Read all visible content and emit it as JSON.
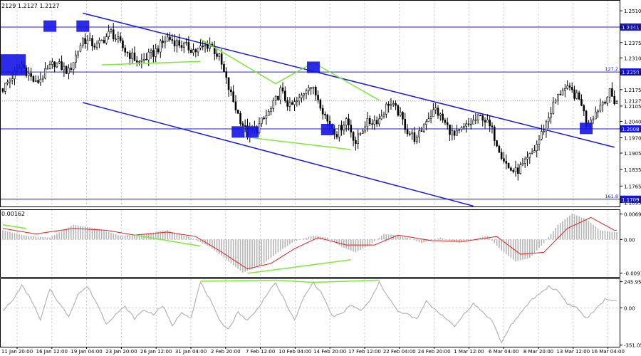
{
  "header": {
    "ohlc_text": "2129 1.2127 1.2127"
  },
  "colors": {
    "background": "#ffffff",
    "grid": "#c8c8c8",
    "price": "#000000",
    "trend": "#1a1adc",
    "level": "#1a1adc",
    "marker": "#1414e6",
    "green": "#7ce83a",
    "macd_hist": "#b4b4b4",
    "macd_signal": "#e02020",
    "cci": "#b4b4b4",
    "price_box": "#1414e6",
    "price_box_text": "#ffffff"
  },
  "chart_data": [
    {
      "type": "candlestick",
      "name": "price",
      "x_ticks": [
        "11 Jan 20:00",
        "16 Jan 12:00",
        "19 Jan 04:00",
        "23 Jan 20:00",
        "26 Jan 12:00",
        "31 Jan 04:00",
        "2 Feb 20:00",
        "7 Feb 12:00",
        "10 Feb 04:00",
        "14 Feb 20:00",
        "17 Feb 12:00",
        "22 Feb 04:00",
        "24 Feb 20:00",
        "1 Mar 12:00",
        "6 Mar 04:00",
        "8 Mar 20:00",
        "13 Mar 12:00",
        "16 Mar 04:00"
      ],
      "y_ticks": [
        1.251,
        1.2441,
        1.2375,
        1.231,
        1.2245,
        1.2175,
        1.2105,
        1.204,
        1.197,
        1.1905,
        1.1835,
        1.1765,
        1.1695
      ],
      "y_axis_labels": [
        "1.2510",
        "1.2441",
        "1.2375",
        "1.2310",
        "1.2245",
        "1.2175",
        "1.2105",
        "1.2040",
        "1.1970",
        "1.1905",
        "1.1835",
        "1.1765",
        "1.1695"
      ],
      "ylim": [
        1.1678,
        1.2556
      ],
      "last_price": 1.2127,
      "last_price_label": "1.2127",
      "levels": [
        {
          "value": 1.2441,
          "label": "1.2441",
          "tag": ""
        },
        {
          "value": 1.225,
          "label": "1.2250",
          "tag": "127.2"
        },
        {
          "value": 1.2008,
          "label": "1.2008",
          "tag": ""
        },
        {
          "value": 1.1709,
          "label": "1.1709",
          "tag": "161.8"
        }
      ],
      "close_anchors": [
        [
          0,
          1.218
        ],
        [
          8,
          1.228
        ],
        [
          14,
          1.22
        ],
        [
          22,
          1.229
        ],
        [
          28,
          1.225
        ],
        [
          34,
          1.239
        ],
        [
          40,
          1.236
        ],
        [
          46,
          1.242
        ],
        [
          52,
          1.234
        ],
        [
          58,
          1.229
        ],
        [
          64,
          1.233
        ],
        [
          70,
          1.2395
        ],
        [
          76,
          1.2365
        ],
        [
          82,
          1.234
        ],
        [
          88,
          1.237
        ],
        [
          92,
          1.231
        ],
        [
          96,
          1.218
        ],
        [
          100,
          1.207
        ],
        [
          104,
          1.1985
        ],
        [
          108,
          1.201
        ],
        [
          114,
          1.209
        ],
        [
          118,
          1.217
        ],
        [
          122,
          1.21
        ],
        [
          126,
          1.213
        ],
        [
          130,
          1.22
        ],
        [
          134,
          1.214
        ],
        [
          138,
          1.204
        ],
        [
          142,
          1.199
        ],
        [
          146,
          1.205
        ],
        [
          150,
          1.195
        ],
        [
          154,
          1.203
        ],
        [
          160,
          1.205
        ],
        [
          164,
          1.212
        ],
        [
          168,
          1.208
        ],
        [
          172,
          1.2
        ],
        [
          176,
          1.196
        ],
        [
          180,
          1.205
        ],
        [
          184,
          1.209
        ],
        [
          188,
          1.203
        ],
        [
          192,
          1.1975
        ],
        [
          196,
          1.201
        ],
        [
          200,
          1.204
        ],
        [
          204,
          1.206
        ],
        [
          208,
          1.2
        ],
        [
          212,
          1.19
        ],
        [
          215,
          1.184
        ],
        [
          218,
          1.1825
        ],
        [
          222,
          1.186
        ],
        [
          226,
          1.192
        ],
        [
          230,
          1.201
        ],
        [
          234,
          1.211
        ],
        [
          238,
          1.218
        ],
        [
          242,
          1.2165
        ],
        [
          246,
          1.212
        ],
        [
          248,
          1.203
        ],
        [
          252,
          1.208
        ],
        [
          255,
          1.2125
        ],
        [
          258,
          1.216
        ],
        [
          260,
          1.2127
        ]
      ],
      "trend_lines": [
        [
          [
            34,
            1.25
          ],
          [
            260,
            1.193
          ]
        ],
        [
          [
            34,
            1.212
          ],
          [
            200,
            1.168
          ]
        ]
      ],
      "green_lines": [
        [
          [
            42,
            1.228
          ],
          [
            84,
            1.2295
          ]
        ],
        [
          [
            84,
            1.239
          ],
          [
            116,
            1.22
          ],
          [
            132,
            1.229
          ],
          [
            160,
            1.213
          ]
        ],
        [
          [
            102,
            1.1975
          ],
          [
            148,
            1.192
          ]
        ]
      ],
      "markers": [
        {
          "t": 4,
          "p": 1.228,
          "size": "large"
        },
        {
          "t": 20,
          "p": 1.2445,
          "size": "small"
        },
        {
          "t": 34,
          "p": 1.2445,
          "size": "small"
        },
        {
          "t": 100,
          "p": 1.1995,
          "size": "small"
        },
        {
          "t": 106,
          "p": 1.1995,
          "size": "small"
        },
        {
          "t": 132,
          "p": 1.227,
          "size": "small"
        },
        {
          "t": 138,
          "p": 1.2005,
          "size": "small"
        },
        {
          "t": 248,
          "p": 1.201,
          "size": "small"
        }
      ]
    },
    {
      "type": "histogram",
      "name": "MACD",
      "header_value": "0.00162",
      "y_axis_labels": [
        "0.00691",
        "0.00",
        "-0.00917"
      ],
      "y_ticks": [
        0.00691,
        0.0,
        -0.00917
      ],
      "ylim": [
        -0.01,
        0.008
      ],
      "hist_anchors": [
        [
          0,
          0.0025
        ],
        [
          10,
          0.001
        ],
        [
          20,
          0.0005
        ],
        [
          30,
          0.004
        ],
        [
          40,
          0.003
        ],
        [
          50,
          0.001
        ],
        [
          60,
          0.0015
        ],
        [
          70,
          0.0025
        ],
        [
          80,
          0.0005
        ],
        [
          88,
          -0.002
        ],
        [
          96,
          -0.006
        ],
        [
          102,
          -0.009
        ],
        [
          110,
          -0.007
        ],
        [
          118,
          -0.003
        ],
        [
          124,
          -0.0005
        ],
        [
          132,
          0.001
        ],
        [
          138,
          0.0005
        ],
        [
          144,
          -0.002
        ],
        [
          150,
          -0.0035
        ],
        [
          156,
          -0.0015
        ],
        [
          162,
          0.0015
        ],
        [
          170,
          0.001
        ],
        [
          178,
          -0.001
        ],
        [
          186,
          0.0005
        ],
        [
          194,
          -0.001
        ],
        [
          200,
          0.0
        ],
        [
          206,
          0.001
        ],
        [
          212,
          -0.003
        ],
        [
          218,
          -0.006
        ],
        [
          224,
          -0.005
        ],
        [
          230,
          -0.001
        ],
        [
          236,
          0.004
        ],
        [
          242,
          0.007
        ],
        [
          248,
          0.0055
        ],
        [
          254,
          0.0025
        ],
        [
          260,
          0.002
        ]
      ],
      "signal_anchors": [
        [
          0,
          0.003
        ],
        [
          14,
          0.0015
        ],
        [
          30,
          0.003
        ],
        [
          44,
          0.0025
        ],
        [
          56,
          0.0012
        ],
        [
          70,
          0.002
        ],
        [
          82,
          0.0008
        ],
        [
          92,
          -0.003
        ],
        [
          104,
          -0.008
        ],
        [
          114,
          -0.0065
        ],
        [
          124,
          -0.0025
        ],
        [
          134,
          0.0005
        ],
        [
          146,
          -0.0015
        ],
        [
          158,
          -0.0015
        ],
        [
          168,
          0.0012
        ],
        [
          182,
          -0.0003
        ],
        [
          196,
          -0.0005
        ],
        [
          210,
          0.0008
        ],
        [
          220,
          -0.004
        ],
        [
          230,
          -0.0035
        ],
        [
          240,
          0.003
        ],
        [
          250,
          0.006
        ],
        [
          260,
          0.0025
        ]
      ],
      "green_lines": [
        [
          [
            0,
            0.004
          ],
          [
            10,
            0.003
          ]
        ],
        [
          [
            56,
            0.0012
          ],
          [
            84,
            -0.0018
          ]
        ],
        [
          [
            104,
            -0.0092
          ],
          [
            148,
            -0.0055
          ]
        ]
      ]
    },
    {
      "type": "line",
      "name": "CCI",
      "y_axis_labels": [
        "245.9564",
        "0.00",
        "-351.058"
      ],
      "y_ticks": [
        245.9564,
        0.0,
        -351.058
      ],
      "ylim": [
        -360,
        270
      ],
      "line_anchors": [
        [
          0,
          -20
        ],
        [
          4,
          60
        ],
        [
          8,
          210
        ],
        [
          12,
          80
        ],
        [
          16,
          -120
        ],
        [
          20,
          180
        ],
        [
          24,
          40
        ],
        [
          28,
          -80
        ],
        [
          32,
          130
        ],
        [
          36,
          200
        ],
        [
          40,
          40
        ],
        [
          44,
          -150
        ],
        [
          48,
          -60
        ],
        [
          52,
          10
        ],
        [
          56,
          -100
        ],
        [
          60,
          -20
        ],
        [
          64,
          -60
        ],
        [
          68,
          20
        ],
        [
          72,
          -170
        ],
        [
          76,
          -40
        ],
        [
          80,
          -90
        ],
        [
          84,
          240
        ],
        [
          88,
          80
        ],
        [
          92,
          -120
        ],
        [
          96,
          -200
        ],
        [
          100,
          -40
        ],
        [
          104,
          -120
        ],
        [
          108,
          -20
        ],
        [
          112,
          120
        ],
        [
          116,
          230
        ],
        [
          120,
          60
        ],
        [
          124,
          -120
        ],
        [
          128,
          100
        ],
        [
          132,
          240
        ],
        [
          136,
          120
        ],
        [
          140,
          -80
        ],
        [
          144,
          -60
        ],
        [
          148,
          30
        ],
        [
          152,
          -30
        ],
        [
          156,
          60
        ],
        [
          160,
          240
        ],
        [
          164,
          100
        ],
        [
          168,
          -40
        ],
        [
          172,
          -60
        ],
        [
          176,
          -110
        ],
        [
          180,
          60
        ],
        [
          184,
          -20
        ],
        [
          188,
          -90
        ],
        [
          192,
          -180
        ],
        [
          196,
          -60
        ],
        [
          200,
          40
        ],
        [
          204,
          -40
        ],
        [
          208,
          -120
        ],
        [
          212,
          -330
        ],
        [
          216,
          -160
        ],
        [
          220,
          -60
        ],
        [
          224,
          60
        ],
        [
          228,
          130
        ],
        [
          232,
          200
        ],
        [
          236,
          160
        ],
        [
          240,
          40
        ],
        [
          244,
          0
        ],
        [
          248,
          -100
        ],
        [
          252,
          -20
        ],
        [
          256,
          80
        ],
        [
          260,
          70
        ]
      ],
      "green_lines": [
        [
          [
            84,
            250
          ],
          [
            116,
            260
          ],
          [
            132,
            240
          ],
          [
            160,
            260
          ]
        ]
      ]
    }
  ]
}
